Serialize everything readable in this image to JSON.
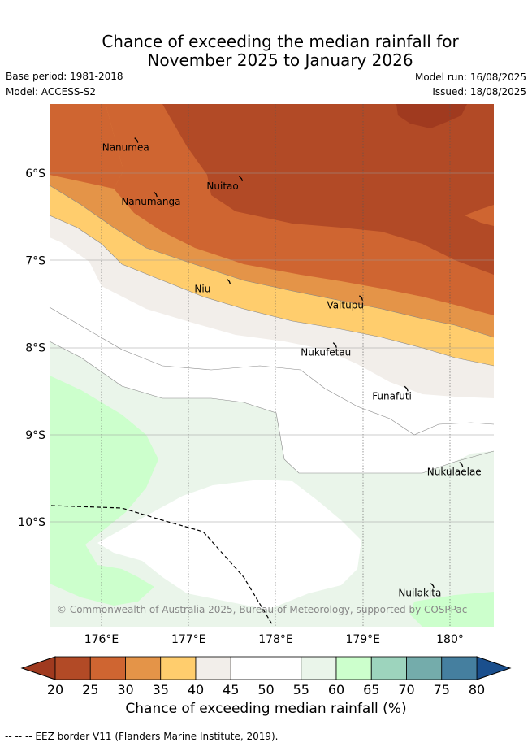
{
  "title_line1": "Chance of exceeding the median rainfall for",
  "title_line2": "November 2025 to January 2026",
  "base_period": "Base period: 1981-2018",
  "model": "Model: ACCESS-S2",
  "model_run": "Model run: 16/08/2025",
  "issued": "Issued: 18/08/2025",
  "map": {
    "lon_ticks": [
      "176°E",
      "177°E",
      "178°E",
      "179°E",
      "180°"
    ],
    "lat_ticks": [
      "6°S",
      "7°S",
      "8°S",
      "9°S",
      "10°S"
    ],
    "lon_values": [
      176,
      177,
      178,
      179,
      180
    ],
    "lat_values": [
      6,
      7,
      8,
      9,
      10
    ],
    "places": [
      {
        "name": "Nanumea",
        "lon": 176.1,
        "lat": 5.67
      },
      {
        "name": "Nuitao",
        "lon": 177.3,
        "lat": 6.11
      },
      {
        "name": "Nanumanga",
        "lon": 176.32,
        "lat": 6.29
      },
      {
        "name": "Niu",
        "lon": 177.16,
        "lat": 7.29
      },
      {
        "name": "Vaitupu",
        "lon": 178.68,
        "lat": 7.48
      },
      {
        "name": "Nukufetau",
        "lon": 178.38,
        "lat": 8.02
      },
      {
        "name": "Funafuti",
        "lon": 179.2,
        "lat": 8.52
      },
      {
        "name": "Nukulaelae",
        "lon": 179.83,
        "lat": 9.39
      },
      {
        "name": "Nuilakita",
        "lon": 179.5,
        "lat": 10.78
      }
    ],
    "copyright": "© Commonwealth of Australia 2025, Bureau of Meteorology, supported by COSPPac"
  },
  "colorbar": {
    "ticks": [
      "20",
      "25",
      "30",
      "35",
      "40",
      "45",
      "50",
      "55",
      "60",
      "65",
      "70",
      "75",
      "80"
    ],
    "colors": [
      "#b24a26",
      "#cf6531",
      "#e49448",
      "#ffcd6d",
      "#f2eeea",
      "#ffffff",
      "#ffffff",
      "#eaf5ea",
      "#ccffcc",
      "#9dd4bd",
      "#74acab",
      "#457f9f"
    ],
    "under_color": "#a03a1f",
    "over_color": "#1a4f8d",
    "label": "Chance of exceeding median rainfall (%)"
  },
  "footer": "--  --  -- EEZ border V11 (Flanders Marine Institute, 2019)."
}
